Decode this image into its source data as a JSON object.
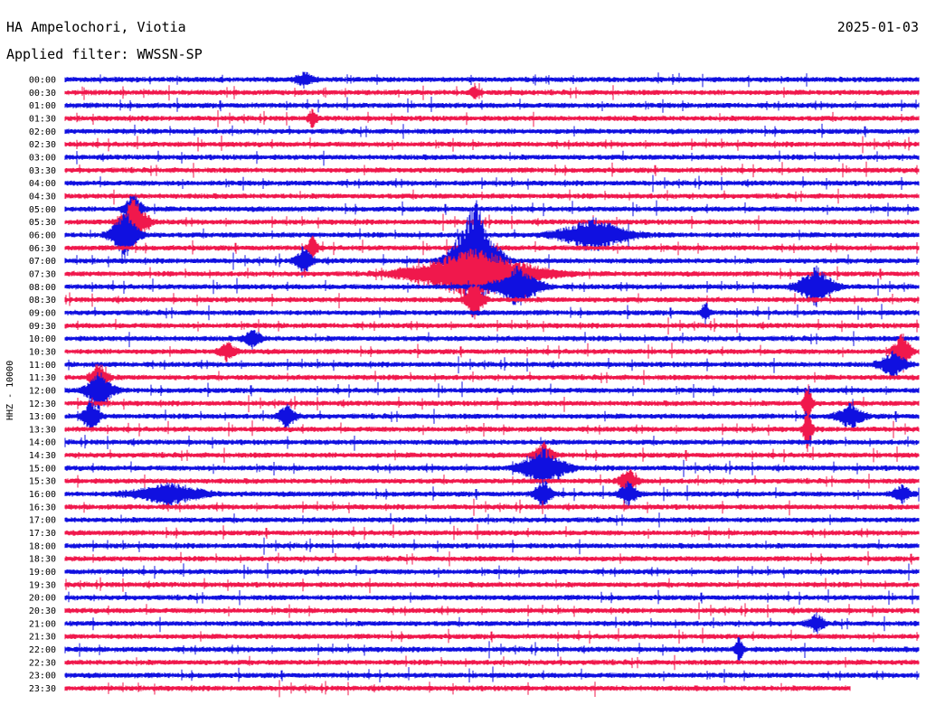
{
  "header": {
    "station": "HA Ampelochori, Viotia",
    "date": "2025-01-03",
    "filter": "Applied filter: WWSSN-SP"
  },
  "chart_data": {
    "type": "line",
    "title": "",
    "ylabel": "HHZ - 10000",
    "time_labels": [
      "00:00",
      "00:30",
      "01:00",
      "01:30",
      "02:00",
      "02:30",
      "03:00",
      "03:30",
      "04:00",
      "04:30",
      "05:00",
      "05:30",
      "06:00",
      "06:30",
      "07:00",
      "07:30",
      "08:00",
      "08:30",
      "09:00",
      "09:30",
      "10:00",
      "10:30",
      "11:00",
      "11:30",
      "12:00",
      "12:30",
      "13:00",
      "13:30",
      "14:00",
      "14:30",
      "15:00",
      "15:30",
      "16:00",
      "16:30",
      "17:00",
      "17:30",
      "18:00",
      "18:30",
      "19:00",
      "19:30",
      "20:00",
      "20:30",
      "21:00",
      "21:30",
      "22:00",
      "22:30",
      "23:00",
      "23:30"
    ],
    "colors": [
      "#1010e0",
      "#f0184c"
    ],
    "trace_minutes": 30,
    "last_trace_end_fraction": 0.92,
    "events": [
      {
        "row": 0,
        "pos": 0.28,
        "amp": 8,
        "width": 0.02
      },
      {
        "row": 1,
        "pos": 0.48,
        "amp": 8,
        "width": 0.01
      },
      {
        "row": 3,
        "pos": 0.29,
        "amp": 10,
        "width": 0.01
      },
      {
        "row": 10,
        "pos": 0.08,
        "amp": 20,
        "width": 0.02
      },
      {
        "row": 11,
        "pos": 0.08,
        "amp": 28,
        "width": 0.03
      },
      {
        "row": 12,
        "pos": 0.07,
        "amp": 30,
        "width": 0.03
      },
      {
        "row": 12,
        "pos": 0.62,
        "amp": 18,
        "width": 0.08
      },
      {
        "row": 13,
        "pos": 0.29,
        "amp": 18,
        "width": 0.01
      },
      {
        "row": 14,
        "pos": 0.48,
        "amp": 70,
        "width": 0.05
      },
      {
        "row": 14,
        "pos": 0.28,
        "amp": 15,
        "width": 0.02
      },
      {
        "row": 15,
        "pos": 0.48,
        "amp": 30,
        "width": 0.14
      },
      {
        "row": 16,
        "pos": 0.53,
        "amp": 22,
        "width": 0.05
      },
      {
        "row": 16,
        "pos": 0.88,
        "amp": 22,
        "width": 0.04
      },
      {
        "row": 17,
        "pos": 0.48,
        "amp": 25,
        "width": 0.02
      },
      {
        "row": 18,
        "pos": 0.75,
        "amp": 12,
        "width": 0.01
      },
      {
        "row": 20,
        "pos": 0.22,
        "amp": 10,
        "width": 0.02
      },
      {
        "row": 21,
        "pos": 0.19,
        "amp": 10,
        "width": 0.02
      },
      {
        "row": 21,
        "pos": 0.98,
        "amp": 20,
        "width": 0.02
      },
      {
        "row": 22,
        "pos": 0.97,
        "amp": 14,
        "width": 0.03
      },
      {
        "row": 23,
        "pos": 0.04,
        "amp": 18,
        "width": 0.02
      },
      {
        "row": 24,
        "pos": 0.04,
        "amp": 22,
        "width": 0.03
      },
      {
        "row": 25,
        "pos": 0.87,
        "amp": 25,
        "width": 0.01
      },
      {
        "row": 26,
        "pos": 0.03,
        "amp": 18,
        "width": 0.02
      },
      {
        "row": 26,
        "pos": 0.26,
        "amp": 14,
        "width": 0.02
      },
      {
        "row": 26,
        "pos": 0.92,
        "amp": 14,
        "width": 0.03
      },
      {
        "row": 27,
        "pos": 0.87,
        "amp": 30,
        "width": 0.01
      },
      {
        "row": 29,
        "pos": 0.56,
        "amp": 16,
        "width": 0.02
      },
      {
        "row": 30,
        "pos": 0.56,
        "amp": 22,
        "width": 0.05
      },
      {
        "row": 31,
        "pos": 0.66,
        "amp": 14,
        "width": 0.02
      },
      {
        "row": 32,
        "pos": 0.12,
        "amp": 12,
        "width": 0.08
      },
      {
        "row": 32,
        "pos": 0.56,
        "amp": 16,
        "width": 0.02
      },
      {
        "row": 32,
        "pos": 0.66,
        "amp": 14,
        "width": 0.02
      },
      {
        "row": 32,
        "pos": 0.98,
        "amp": 10,
        "width": 0.02
      },
      {
        "row": 42,
        "pos": 0.88,
        "amp": 10,
        "width": 0.02
      },
      {
        "row": 44,
        "pos": 0.79,
        "amp": 14,
        "width": 0.01
      }
    ]
  }
}
